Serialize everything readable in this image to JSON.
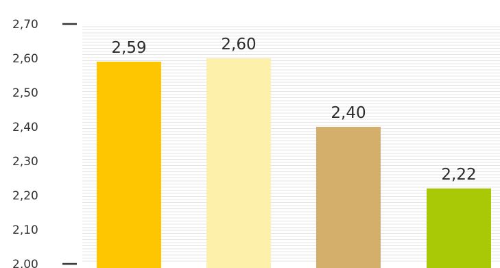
{
  "chart_data": {
    "type": "bar",
    "title": "",
    "xlabel": "",
    "ylabel": "",
    "categories": [
      "",
      "",
      "",
      ""
    ],
    "values": [
      2.59,
      2.6,
      2.4,
      2.22
    ],
    "value_labels": [
      "2,59",
      "2,60",
      "2,40",
      "2,22"
    ],
    "colors": [
      "#fec600",
      "#fdf0ab",
      "#d4af6b",
      "#a9c805"
    ],
    "ylim": [
      2.0,
      2.7
    ],
    "yticks": [
      2.7,
      2.6,
      2.5,
      2.4,
      2.3,
      2.2,
      2.1,
      2.0
    ],
    "ytick_labels": [
      "2,70",
      "2,60",
      "2,50",
      "2,40",
      "2,30",
      "2,20",
      "2,10",
      "2,00"
    ],
    "major_tick_marks_at": [
      2.7,
      2.0
    ],
    "grid": "horizontal hairlines",
    "grid_color": "#e4e4e4"
  }
}
